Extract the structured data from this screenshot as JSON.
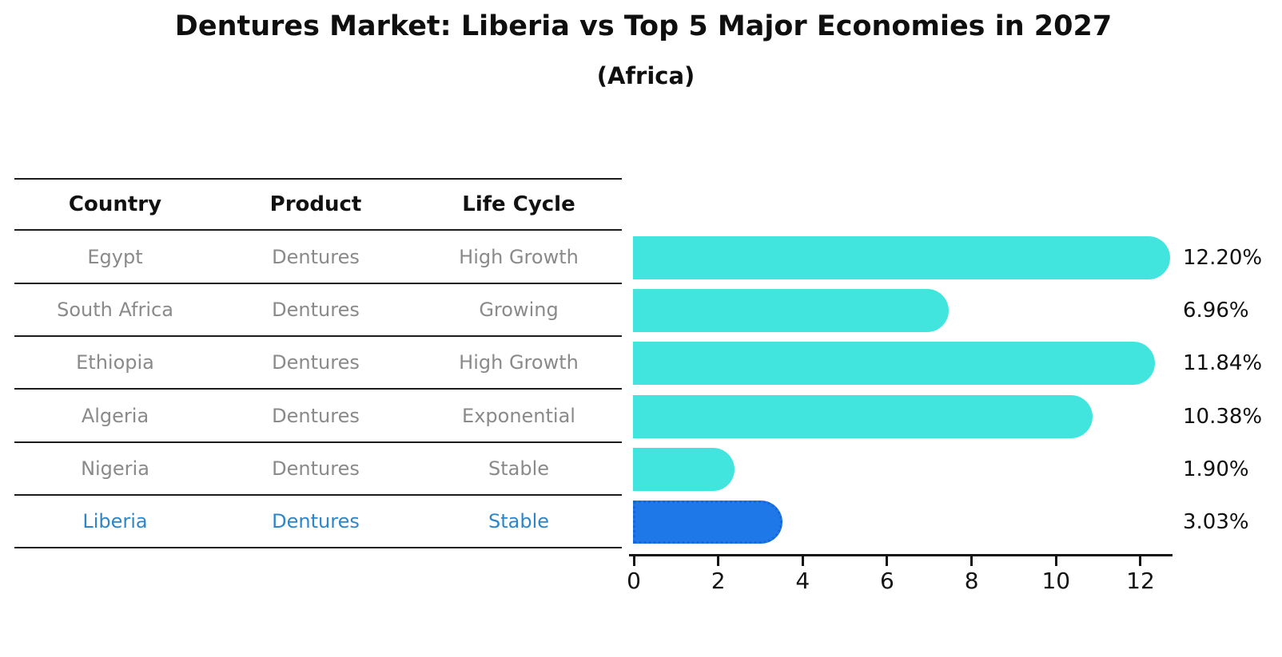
{
  "title": "Dentures Market: Liberia vs Top 5 Major Economies in 2027",
  "subtitle": "(Africa)",
  "table": {
    "headers": [
      "Country",
      "Product",
      "Life Cycle"
    ],
    "rows": [
      {
        "country": "Egypt",
        "product": "Dentures",
        "life_cycle": "High Growth"
      },
      {
        "country": "South Africa",
        "product": "Dentures",
        "life_cycle": "Growing"
      },
      {
        "country": "Ethiopia",
        "product": "Dentures",
        "life_cycle": "High Growth"
      },
      {
        "country": "Algeria",
        "product": "Dentures",
        "life_cycle": "Exponential"
      },
      {
        "country": "Nigeria",
        "product": "Dentures",
        "life_cycle": "Stable"
      },
      {
        "country": "Liberia",
        "product": "Dentures",
        "life_cycle": "Stable"
      }
    ],
    "highlight_row_index": 5
  },
  "chart_data": {
    "type": "bar",
    "orientation": "horizontal",
    "title": "Dentures Market: Liberia vs Top 5 Major Economies in 2027",
    "subtitle": "(Africa)",
    "categories": [
      "Egypt",
      "South Africa",
      "Ethiopia",
      "Algeria",
      "Nigeria",
      "Liberia"
    ],
    "values": [
      12.2,
      6.96,
      11.84,
      10.38,
      1.9,
      3.03
    ],
    "value_labels": [
      "12.20%",
      "6.96%",
      "11.84%",
      "10.38%",
      "1.90%",
      "3.03%"
    ],
    "xlabel": "",
    "ylabel": "",
    "xticks": [
      0,
      2,
      4,
      6,
      8,
      10,
      12
    ],
    "xlim": [
      0,
      12.8
    ],
    "grid": false,
    "legend": null,
    "highlight_index": 5,
    "colors": {
      "bar": "#42E5DE",
      "highlight_bar": "#1E78E8",
      "highlight_bar_border": "#1566DC",
      "highlight_text": "#2E86C8",
      "table_text": "#8A8A8A",
      "header_text": "#111111",
      "axis": "#141414"
    }
  }
}
